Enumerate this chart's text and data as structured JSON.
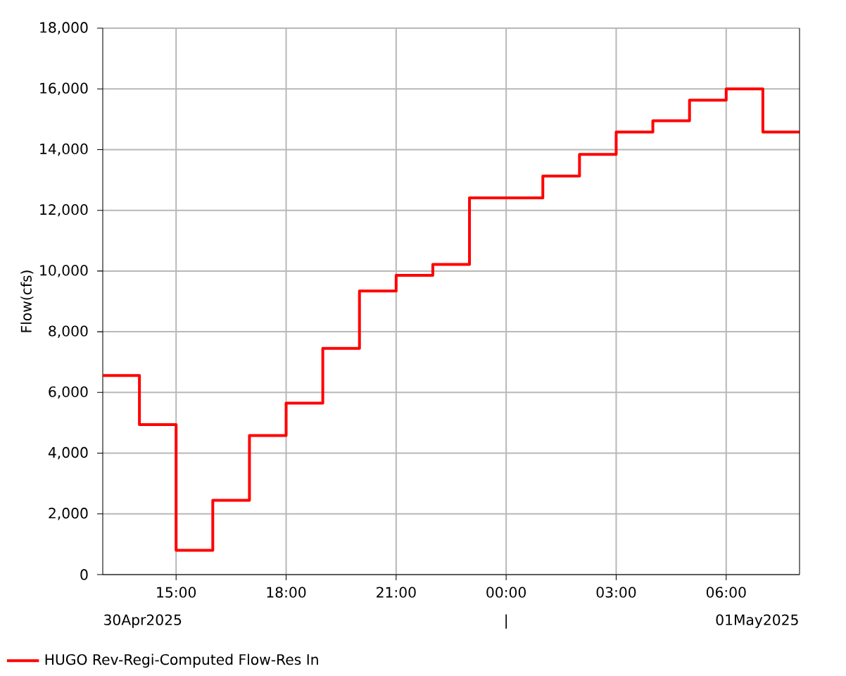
{
  "chart_data": {
    "type": "step",
    "ylabel": "Flow(cfs)",
    "x": [
      "2025-04-30T13:00",
      "2025-04-30T14:00",
      "2025-04-30T15:00",
      "2025-04-30T16:00",
      "2025-04-30T17:00",
      "2025-04-30T18:00",
      "2025-04-30T19:00",
      "2025-04-30T20:00",
      "2025-04-30T21:00",
      "2025-04-30T22:00",
      "2025-04-30T23:00",
      "2025-05-01T00:00",
      "2025-05-01T01:00",
      "2025-05-01T02:00",
      "2025-05-01T03:00",
      "2025-05-01T04:00",
      "2025-05-01T05:00",
      "2025-05-01T06:00",
      "2025-05-01T07:00",
      "2025-05-01T08:00"
    ],
    "series": [
      {
        "name": "HUGO Rev-Regi-Computed Flow-Res In",
        "color": "#ff0000",
        "values": [
          6560,
          4940,
          800,
          2450,
          4580,
          5650,
          7450,
          9340,
          9860,
          10220,
          12410,
          12410,
          13130,
          13840,
          14580,
          14950,
          15630,
          16000,
          14580,
          14580
        ]
      }
    ],
    "xlim": [
      "2025-04-30T13:00",
      "2025-05-01T08:00"
    ],
    "xticks": [
      {
        "value": "2025-04-30T15:00",
        "label": "15:00"
      },
      {
        "value": "2025-04-30T18:00",
        "label": "18:00"
      },
      {
        "value": "2025-04-30T21:00",
        "label": "21:00"
      },
      {
        "value": "2025-05-01T00:00",
        "label": "00:00"
      },
      {
        "value": "2025-05-01T03:00",
        "label": "03:00"
      },
      {
        "value": "2025-05-01T06:00",
        "label": "06:00"
      }
    ],
    "ylim": [
      0,
      18000
    ],
    "yticks": [
      0,
      {
        "value": 2000,
        "label": "2,000"
      },
      {
        "value": 4000,
        "label": "4,000"
      },
      {
        "value": 6000,
        "label": "6,000"
      },
      {
        "value": 8000,
        "label": "8,000"
      },
      {
        "value": 10000,
        "label": "10,000"
      },
      {
        "value": 12000,
        "label": "12,000"
      },
      {
        "value": 14000,
        "label": "14,000"
      },
      {
        "value": 16000,
        "label": "16,000"
      },
      {
        "value": 18000,
        "label": "18,000"
      }
    ],
    "annotations": [
      "30Apr2025",
      "|",
      "01May2025"
    ],
    "grid": true,
    "legend": "bottom left",
    "line_style": "solid",
    "marker": "none"
  }
}
